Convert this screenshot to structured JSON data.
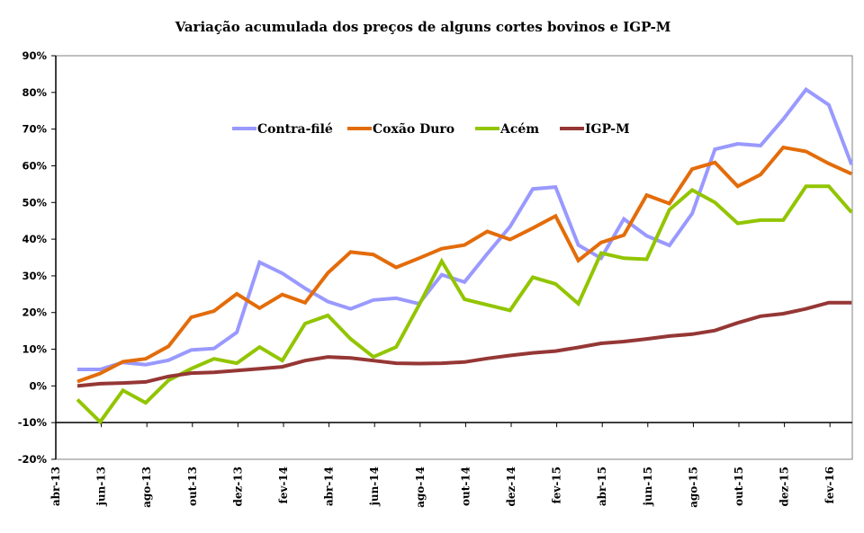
{
  "chart_data": {
    "type": "line",
    "title": "Variação acumulada dos preços de alguns cortes bovinos e IGP-M",
    "xlabel": "",
    "ylabel": "",
    "ylim": [
      -0.2,
      0.9
    ],
    "yticks": [
      -0.2,
      -0.1,
      0.0,
      0.1,
      0.2,
      0.3,
      0.4,
      0.5,
      0.6,
      0.7,
      0.8,
      0.9
    ],
    "ytick_labels": [
      "-20%",
      "-10%",
      "0%",
      "10%",
      "20%",
      "30%",
      "40%",
      "50%",
      "60%",
      "70%",
      "80%",
      "90%"
    ],
    "x_axis_crosses_at": -0.1,
    "xtick_labels": [
      "abr-13",
      "jun-13",
      "ago-13",
      "out-13",
      "dez-13",
      "fev-14",
      "abr-14",
      "jun-14",
      "ago-14",
      "out-14",
      "dez-14",
      "fev-15",
      "abr-15",
      "jun-15",
      "ago-15",
      "out-15",
      "dez-15",
      "fev-16"
    ],
    "x": [
      "mai-13",
      "jun-13",
      "jul-13",
      "ago-13",
      "set-13",
      "out-13",
      "nov-13",
      "dez-13",
      "jan-14",
      "fev-14",
      "mar-14",
      "abr-14",
      "mai-14",
      "jun-14",
      "jul-14",
      "ago-14",
      "set-14",
      "out-14",
      "nov-14",
      "dez-14",
      "jan-15",
      "fev-15",
      "mar-15",
      "abr-15",
      "mai-15",
      "jun-15",
      "jul-15",
      "ago-15",
      "set-15",
      "out-15",
      "nov-15",
      "dez-15",
      "jan-16",
      "fev-16",
      "mar-16"
    ],
    "legend_position": "top-center (inside plot)",
    "grid": false,
    "series": [
      {
        "name": "Contra-filé",
        "color": "#9999ff",
        "values": [
          0.045,
          0.045,
          0.064,
          0.058,
          0.07,
          0.098,
          0.102,
          0.146,
          0.337,
          0.307,
          0.266,
          0.23,
          0.21,
          0.234,
          0.239,
          0.224,
          0.303,
          0.283,
          0.36,
          0.434,
          0.537,
          0.542,
          0.384,
          0.348,
          0.455,
          0.409,
          0.383,
          0.47,
          0.645,
          0.66,
          0.655,
          0.727,
          0.808,
          0.766,
          0.603
        ]
      },
      {
        "name": "Coxão Duro",
        "color": "#e36c0a",
        "values": [
          0.012,
          0.034,
          0.066,
          0.074,
          0.108,
          0.187,
          0.204,
          0.251,
          0.212,
          0.249,
          0.227,
          0.308,
          0.365,
          0.358,
          0.323,
          0.348,
          0.374,
          0.384,
          0.421,
          0.399,
          0.43,
          0.463,
          0.342,
          0.391,
          0.411,
          0.52,
          0.497,
          0.591,
          0.609,
          0.544,
          0.576,
          0.65,
          0.639,
          0.606,
          0.578
        ]
      },
      {
        "name": "Acém",
        "color": "#92c500",
        "values": [
          -0.037,
          -0.098,
          -0.012,
          -0.046,
          0.015,
          0.047,
          0.074,
          0.062,
          0.106,
          0.069,
          0.17,
          0.192,
          0.128,
          0.079,
          0.106,
          0.22,
          0.34,
          0.236,
          0.221,
          0.206,
          0.296,
          0.278,
          0.224,
          0.362,
          0.348,
          0.345,
          0.48,
          0.534,
          0.5,
          0.443,
          0.452,
          0.452,
          0.544,
          0.544,
          0.473
        ]
      },
      {
        "name": "IGP-M",
        "color": "#953735",
        "values": [
          0.0,
          0.006,
          0.008,
          0.011,
          0.026,
          0.035,
          0.037,
          0.042,
          0.047,
          0.052,
          0.069,
          0.079,
          0.076,
          0.069,
          0.062,
          0.061,
          0.062,
          0.065,
          0.075,
          0.083,
          0.09,
          0.095,
          0.105,
          0.116,
          0.121,
          0.128,
          0.136,
          0.141,
          0.151,
          0.172,
          0.19,
          0.197,
          0.21,
          0.227,
          0.227
        ]
      }
    ]
  }
}
